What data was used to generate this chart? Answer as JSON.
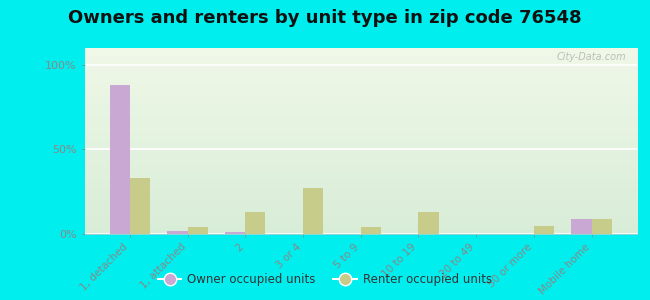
{
  "title": "Owners and renters by unit type in zip code 76548",
  "categories": [
    "1, detached",
    "1, attached",
    "2",
    "3 or 4",
    "5 to 9",
    "10 to 19",
    "20 to 49",
    "50 or more",
    "Mobile home"
  ],
  "owner_values": [
    88,
    2,
    1,
    0,
    0,
    0,
    0,
    0,
    9
  ],
  "renter_values": [
    33,
    4,
    13,
    27,
    4,
    13,
    0,
    5,
    9
  ],
  "owner_color": "#c9a8d4",
  "renter_color": "#c8cc8a",
  "outer_bg": "#00eeee",
  "plot_bg": "#e8f2d8",
  "yticks": [
    0,
    50,
    100
  ],
  "ylim": [
    0,
    110
  ],
  "bar_width": 0.35,
  "legend_owner": "Owner occupied units",
  "legend_renter": "Renter occupied units",
  "title_fontsize": 13,
  "watermark": "City-Data.com"
}
